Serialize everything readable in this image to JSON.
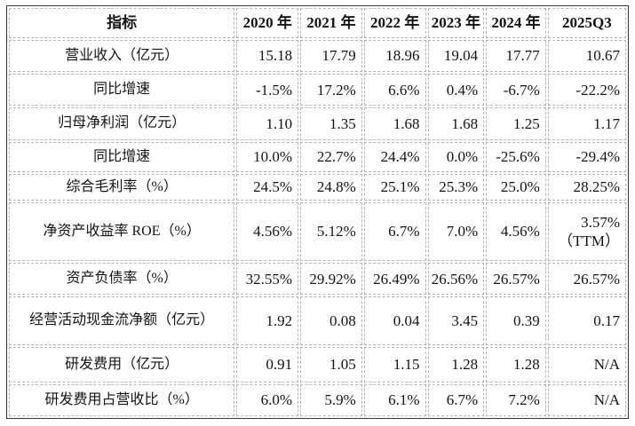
{
  "table": {
    "header": [
      "指标",
      "2020 年",
      "2021 年",
      "2022 年",
      "2023 年",
      "2024 年",
      "2025Q3"
    ],
    "rows": [
      {
        "label": "营业收入（亿元）",
        "values": [
          "15.18",
          "17.79",
          "18.96",
          "19.04",
          "17.77",
          "10.67"
        ]
      },
      {
        "label": "同比增速",
        "values": [
          "-1.5%",
          "17.2%",
          "6.6%",
          "0.4%",
          "-6.7%",
          "-22.2%"
        ]
      },
      {
        "label": "归母净利润（亿元）",
        "values": [
          "1.10",
          "1.35",
          "1.68",
          "1.68",
          "1.25",
          "1.17"
        ]
      },
      {
        "label": "同比增速",
        "values": [
          "10.0%",
          "22.7%",
          "24.4%",
          "0.0%",
          "-25.6%",
          "-29.4%"
        ]
      },
      {
        "label": "综合毛利率（%）",
        "values": [
          "24.5%",
          "24.8%",
          "25.1%",
          "25.3%",
          "25.0%",
          "28.25%"
        ]
      },
      {
        "label": "净资产收益率 ROE（%）",
        "values": [
          "4.56%",
          "5.12%",
          "6.7%",
          "7.0%",
          "4.56%",
          "3.57%\n（TTM）"
        ]
      },
      {
        "label": "资产负债率（%）",
        "values": [
          "32.55%",
          "29.92%",
          "26.49%",
          "26.56%",
          "26.57%",
          "26.57%"
        ]
      },
      {
        "label": "经营活动现金流净额（亿元）",
        "values": [
          "1.92",
          "0.08",
          "0.04",
          "3.45",
          "0.39",
          "0.17"
        ]
      },
      {
        "label": "研发费用（亿元）",
        "values": [
          "0.91",
          "1.05",
          "1.15",
          "1.28",
          "1.28",
          "N/A"
        ]
      },
      {
        "label": "研发费用占营收比（%）",
        "values": [
          "6.0%",
          "5.9%",
          "6.1%",
          "6.7%",
          "7.2%",
          "N/A"
        ]
      }
    ],
    "colors": {
      "outer_border": "#3a3a3a",
      "inner_border": "#b4b4b4",
      "text": "#141414",
      "background": "#ffffff"
    }
  }
}
